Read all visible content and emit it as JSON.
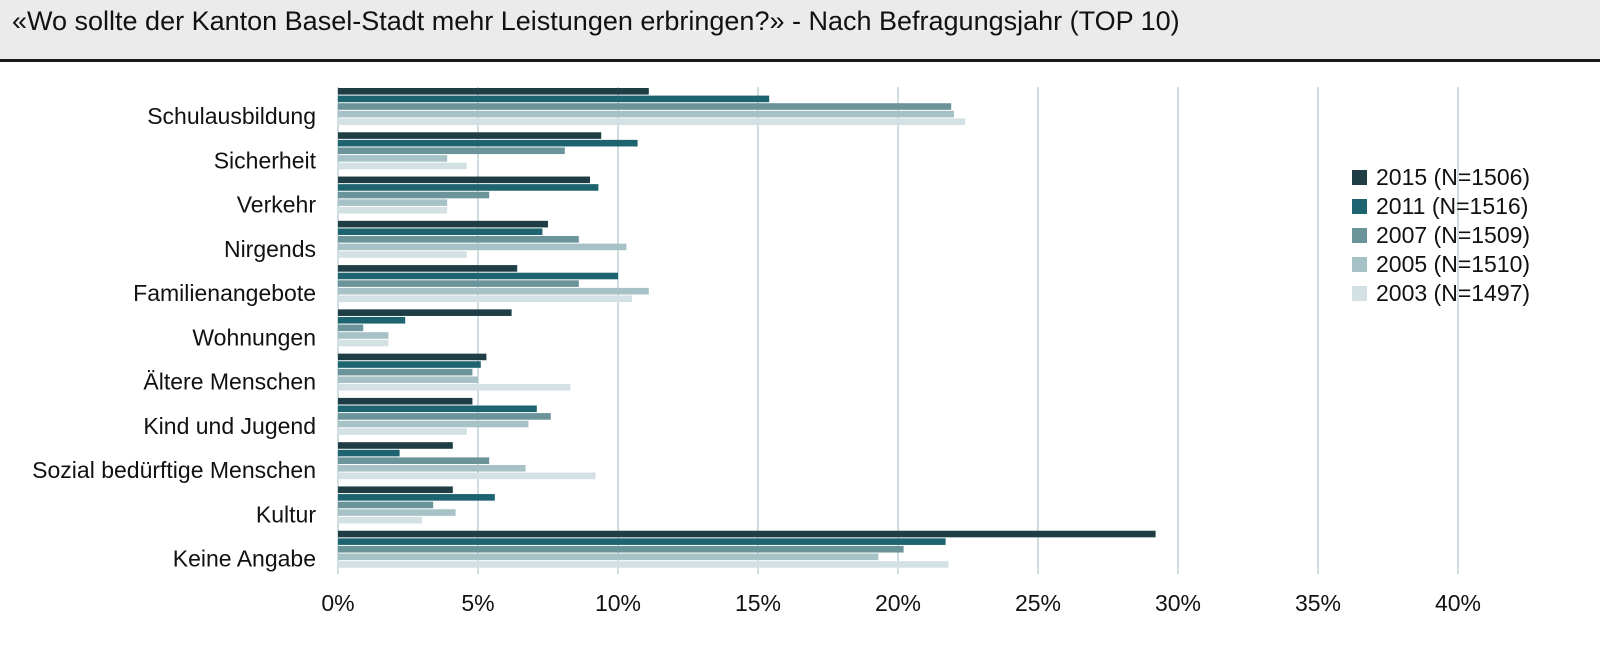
{
  "title": "«Wo sollte der Kanton Basel-Stadt mehr Leistungen erbringen?» - Nach Befragungsjahr (TOP 10)",
  "chart_data": {
    "type": "bar",
    "orientation": "horizontal",
    "categories": [
      "Schulausbildung",
      "Sicherheit",
      "Verkehr",
      "Nirgends",
      "Familienangebote",
      "Wohnungen",
      "Ältere Menschen",
      "Kind und Jugend",
      "Sozial bedürftige Menschen",
      "Kultur",
      "Keine Angabe"
    ],
    "series": [
      {
        "name": "2015 (N=1506)",
        "color": "#1e3d44",
        "values": [
          11.1,
          9.4,
          9.0,
          7.5,
          6.4,
          6.2,
          5.3,
          4.8,
          4.1,
          4.1,
          29.2
        ]
      },
      {
        "name": "2011 (N=1516)",
        "color": "#1d6470",
        "values": [
          15.4,
          10.7,
          9.3,
          7.3,
          10.0,
          2.4,
          5.1,
          7.1,
          2.2,
          5.6,
          21.7
        ]
      },
      {
        "name": "2007 (N=1509)",
        "color": "#6a9499",
        "values": [
          21.9,
          8.1,
          5.4,
          8.6,
          8.6,
          0.9,
          4.8,
          7.6,
          5.4,
          3.4,
          20.2
        ]
      },
      {
        "name": "2005 (N=1510)",
        "color": "#a7c2c6",
        "values": [
          22.0,
          3.9,
          3.9,
          10.3,
          11.1,
          1.8,
          5.0,
          6.8,
          6.7,
          4.2,
          19.3
        ]
      },
      {
        "name": "2003 (N=1497)",
        "color": "#d3e1e4",
        "values": [
          22.4,
          4.6,
          3.9,
          4.6,
          10.5,
          1.8,
          8.3,
          4.6,
          9.2,
          3.0,
          21.8
        ]
      }
    ],
    "xlim": [
      0,
      40
    ],
    "xticks": [
      "0%",
      "5%",
      "10%",
      "15%",
      "20%",
      "25%",
      "30%",
      "35%",
      "40%"
    ],
    "grid": "vertical",
    "legend_position": "right"
  }
}
